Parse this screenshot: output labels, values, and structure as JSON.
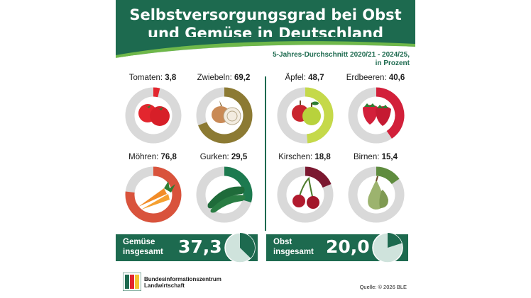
{
  "title_line1": "Selbstversorgungsgrad bei Obst",
  "title_line2": "und Gemüse in Deutschland",
  "subtitle_line1": "5-Jahres-Durchschnitt 2020/21 - 2024/25,",
  "subtitle_line2": "in Prozent",
  "chart_data": {
    "type": "pie",
    "title": "Selbstversorgungsgrad bei Obst und Gemüse in Deutschland",
    "subtitle": "5-Jahres-Durchschnitt 2020/21 - 2024/25, in Prozent",
    "groups": [
      {
        "name": "Gemüse",
        "items": [
          {
            "label": "Tomaten",
            "value": 3.8,
            "value_text": "3,8",
            "color": "#e3262e",
            "icon": "tomato-icon"
          },
          {
            "label": "Zwiebeln",
            "value": 69.2,
            "value_text": "69,2",
            "color": "#8c7a33",
            "icon": "onion-icon"
          },
          {
            "label": "Möhren",
            "value": 76.8,
            "value_text": "76,8",
            "color": "#d9533c",
            "icon": "carrot-icon"
          },
          {
            "label": "Gurken",
            "value": 29.5,
            "value_text": "29,5",
            "color": "#1d7a4f",
            "icon": "cucumber-icon"
          }
        ],
        "total": {
          "label_line1": "Gemüse",
          "label_line2": "insgesamt",
          "value": 37.3,
          "value_text": "37,3"
        }
      },
      {
        "name": "Obst",
        "items": [
          {
            "label": "Äpfel",
            "value": 48.7,
            "value_text": "48,7",
            "color": "#c5d94a",
            "icon": "apple-icon"
          },
          {
            "label": "Erdbeeren",
            "value": 40.6,
            "value_text": "40,6",
            "color": "#d2203a",
            "icon": "strawberry-icon"
          },
          {
            "label": "Kirschen",
            "value": 18.8,
            "value_text": "18,8",
            "color": "#7b1830",
            "icon": "cherry-icon"
          },
          {
            "label": "Birnen",
            "value": 15.4,
            "value_text": "15,4",
            "color": "#5f8c3e",
            "icon": "pear-icon"
          }
        ],
        "total": {
          "label_line1": "Obst",
          "label_line2": "insgesamt",
          "value": 20.0,
          "value_text": "20,0"
        }
      }
    ]
  },
  "colors": {
    "brand_green": "#1d6a4f",
    "track_gray": "#d9d9d9",
    "total_pie_fill": "#cfe3dc"
  },
  "footer": {
    "org_line1": "Bundesinformationszentrum",
    "org_line2": "Landwirtschaft",
    "source": "Quelle: © 2026 BLE"
  }
}
